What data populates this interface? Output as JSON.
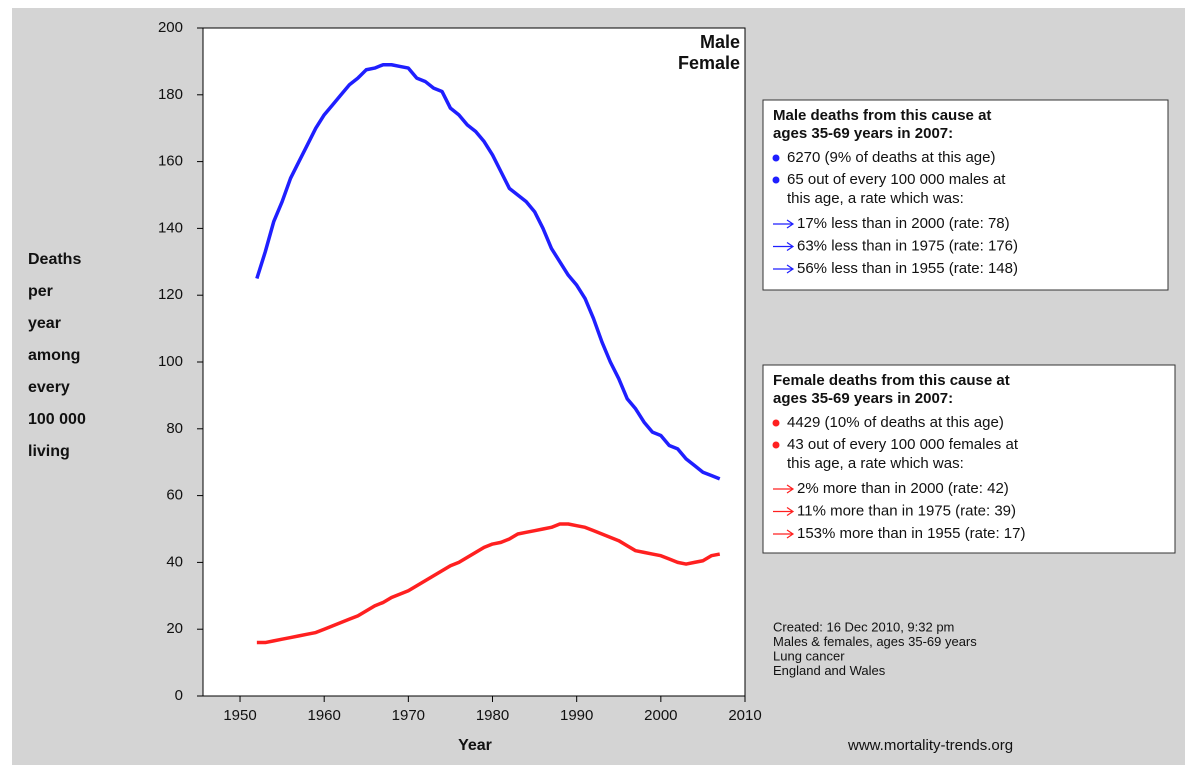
{
  "chart_data": {
    "type": "line",
    "x": [
      1952,
      1953,
      1954,
      1955,
      1956,
      1957,
      1958,
      1959,
      1960,
      1961,
      1962,
      1963,
      1964,
      1965,
      1966,
      1967,
      1968,
      1969,
      1970,
      1971,
      1972,
      1973,
      1974,
      1975,
      1976,
      1977,
      1978,
      1979,
      1980,
      1981,
      1982,
      1983,
      1984,
      1985,
      1986,
      1987,
      1988,
      1989,
      1990,
      1991,
      1992,
      1993,
      1994,
      1995,
      1996,
      1997,
      1998,
      1999,
      2000,
      2001,
      2002,
      2003,
      2004,
      2005,
      2006,
      2007
    ],
    "series": [
      {
        "name": "Male",
        "color": "#1f1fff",
        "values": [
          125,
          133,
          142,
          148,
          155,
          160,
          165,
          170,
          174,
          177,
          180,
          183,
          185,
          187.5,
          188,
          189,
          189,
          188.5,
          188,
          185,
          184,
          182,
          181,
          176,
          174,
          171,
          169,
          166,
          162,
          157,
          152,
          150,
          148,
          145,
          140,
          134,
          130,
          126,
          123,
          119,
          113,
          106,
          100,
          95,
          89,
          86,
          82,
          79,
          78,
          75,
          74,
          71,
          69,
          67,
          66,
          65
        ]
      },
      {
        "name": "Female",
        "color": "#ff2020",
        "values": [
          16,
          16,
          16.5,
          17,
          17.5,
          18,
          18.5,
          19,
          20,
          21,
          22,
          23,
          24,
          25.5,
          27,
          28,
          29.5,
          30.5,
          31.5,
          33,
          34.5,
          36,
          37.5,
          39,
          40,
          41.5,
          43,
          44.5,
          45.5,
          46,
          47,
          48.5,
          49,
          49.5,
          50,
          50.5,
          51.5,
          51.5,
          51,
          50.5,
          49.5,
          48.5,
          47.5,
          46.5,
          45,
          43.5,
          43,
          42.5,
          42,
          41,
          40,
          39.5,
          40,
          40.5,
          42,
          42.5
        ]
      }
    ],
    "xlim": [
      1945.6,
      2010
    ],
    "xticks": [
      1950,
      1960,
      1970,
      1980,
      1990,
      2000,
      2010
    ],
    "ylim": [
      0,
      200
    ],
    "yticks": [
      0,
      20,
      40,
      60,
      80,
      100,
      120,
      140,
      160,
      180,
      200
    ],
    "xlabel": "Year",
    "ylabel": [
      "Deaths",
      "per",
      "year",
      "among",
      "every",
      "100 000",
      "living"
    ],
    "boxes": [
      {
        "heading": [
          "Male deaths from this cause at",
          "ages 35-69 years in 2007:"
        ],
        "bullets": [
          [
            "6270 (9% of deaths at this age)"
          ],
          [
            "65 out of every 100 000 males at",
            "this age, a rate which was:"
          ]
        ],
        "arrows": [
          "17% less than in 2000 (rate: 78)",
          "63% less than in 1975 (rate: 176)",
          "56% less than in 1955 (rate: 148)"
        ]
      },
      {
        "heading": [
          "Female deaths from this cause at",
          "ages 35-69 years in 2007:"
        ],
        "bullets": [
          [
            "4429 (10% of deaths at this age)"
          ],
          [
            "43 out of every 100 000 females at",
            "this age, a rate which was:"
          ]
        ],
        "arrows": [
          "2% more than in 2000 (rate: 42)",
          "11% more than in 1975 (rate: 39)",
          "153% more than in 1955 (rate: 17)"
        ]
      }
    ],
    "notes": [
      "Created: 16 Dec 2010, 9:32 pm",
      "Males & females, ages 35-69 years",
      "Lung cancer",
      "England and Wales"
    ],
    "source": "www.mortality-trends.org"
  }
}
